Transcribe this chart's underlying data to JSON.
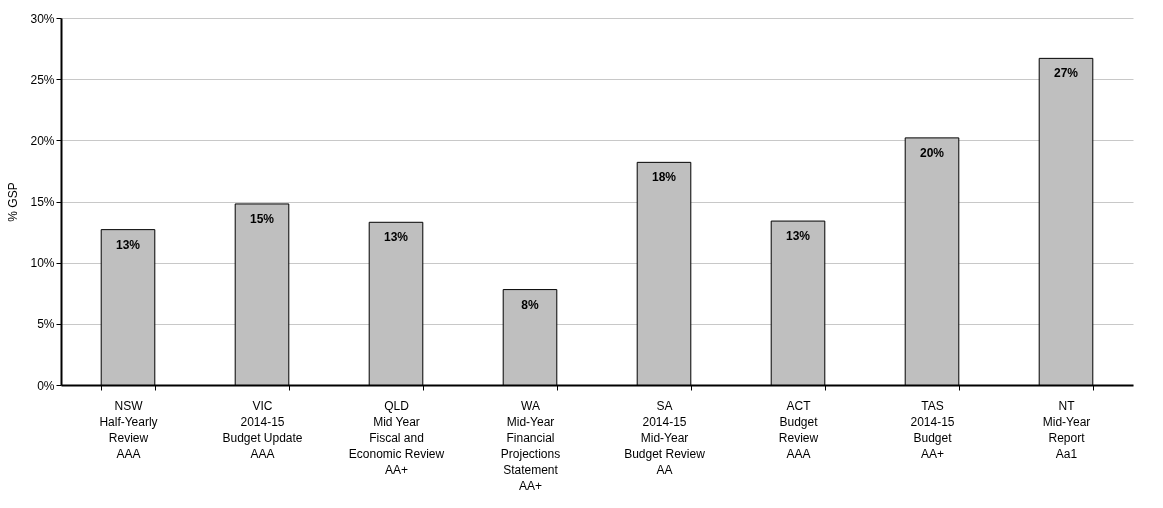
{
  "chart_data": {
    "type": "bar",
    "ylabel": "% GSP",
    "categories": [
      "NSW\nHalf-Yearly\nReview\n\n\nAAA",
      "VIC\n2014-15\nBudget Update\n\n\nAAA",
      "QLD\nMid Year\nFiscal and\nEconomic Review\n\nAA+",
      "WA\nMid-Year\nFinancial\nProjections\nStatement\nAA+",
      "SA\n2014-15\nMid-Year\nBudget Review\n\nAA",
      "ACT\nBudget\nReview\n\n\nAAA",
      "TAS\n2014-15\nBudget\n\n\nAA+",
      "NT\nMid-Year\nReport\n\n\nAa1"
    ],
    "values": [
      12.7,
      14.8,
      13.3,
      7.8,
      18.2,
      13.4,
      20.2,
      26.7
    ],
    "value_labels": [
      "13%",
      "15%",
      "13%",
      "8%",
      "18%",
      "13%",
      "20%",
      "27%"
    ],
    "color": "#bfbfbf",
    "ylim": [
      0,
      30
    ],
    "yticks": [
      {
        "value": 0,
        "label": "0%"
      },
      {
        "value": 5,
        "label": "5%"
      },
      {
        "value": 10,
        "label": "10%"
      },
      {
        "value": 15,
        "label": "15%"
      },
      {
        "value": 20,
        "label": "20%"
      },
      {
        "value": 25,
        "label": "25%"
      },
      {
        "value": 30,
        "label": "30%"
      }
    ],
    "grid": "y"
  }
}
